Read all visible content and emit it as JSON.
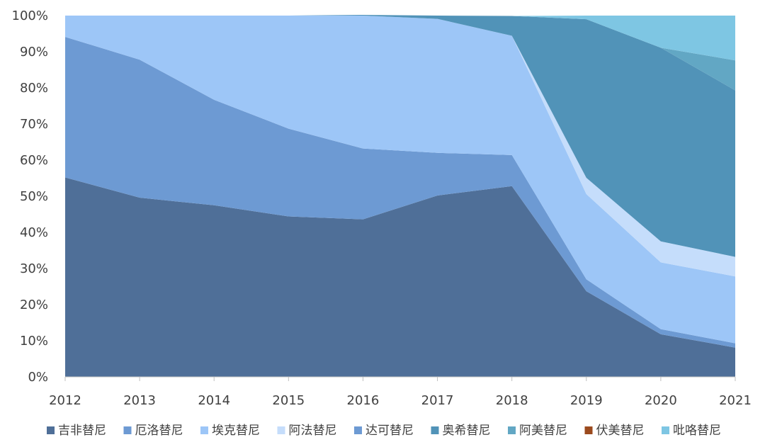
{
  "chart_data": {
    "type": "area",
    "stacked": true,
    "percent": true,
    "categories": [
      "2012",
      "2013",
      "2014",
      "2015",
      "2016",
      "2017",
      "2018",
      "2019",
      "2020",
      "2021"
    ],
    "y_ticks": [
      "0%",
      "10%",
      "20%",
      "30%",
      "40%",
      "50%",
      "60%",
      "70%",
      "80%",
      "90%",
      "100%"
    ],
    "ylim": [
      0,
      100
    ],
    "legend_position": "bottom",
    "series": [
      {
        "name": "吉非替尼",
        "color": "#4f6f98",
        "values": [
          55.2,
          49.6,
          47.5,
          44.4,
          43.6,
          50.2,
          52.8,
          23.7,
          11.8,
          8.1
        ]
      },
      {
        "name": "厄洛替尼",
        "color": "#6d9ad3",
        "values": [
          38.9,
          38.2,
          29.2,
          24.3,
          19.6,
          11.8,
          8.6,
          3.3,
          1.4,
          1.2
        ]
      },
      {
        "name": "埃克替尼",
        "color": "#9dc6f7",
        "values": [
          5.9,
          12.2,
          23.3,
          31.3,
          36.8,
          37.1,
          33.0,
          23.6,
          18.5,
          18.5
        ]
      },
      {
        "name": "阿法替尼",
        "color": "#c5ddfb",
        "values": [
          0,
          0,
          0,
          0,
          0,
          0,
          0,
          4.5,
          5.8,
          5.4
        ]
      },
      {
        "name": "达可替尼",
        "color": "#6d9ad3",
        "values": [
          0,
          0,
          0,
          0,
          0,
          0,
          0,
          0,
          0,
          0
        ]
      },
      {
        "name": "奥希替尼",
        "color": "#5193b8",
        "values": [
          0,
          0,
          0,
          0,
          0.2,
          0.9,
          5.5,
          43.9,
          53.6,
          46.1
        ]
      },
      {
        "name": "阿美替尼",
        "color": "#62a7c4",
        "values": [
          0,
          0,
          0,
          0,
          0,
          0,
          0,
          0,
          0,
          8.3
        ]
      },
      {
        "name": "伏美替尼",
        "color": "#9b4a1e",
        "values": [
          0,
          0,
          0,
          0,
          0,
          0,
          0,
          0,
          0,
          0
        ]
      },
      {
        "name": "吡咯替尼",
        "color": "#7ec6e3",
        "values": [
          0,
          0,
          0,
          0,
          0,
          0,
          0,
          1.0,
          8.9,
          12.4
        ]
      }
    ]
  }
}
